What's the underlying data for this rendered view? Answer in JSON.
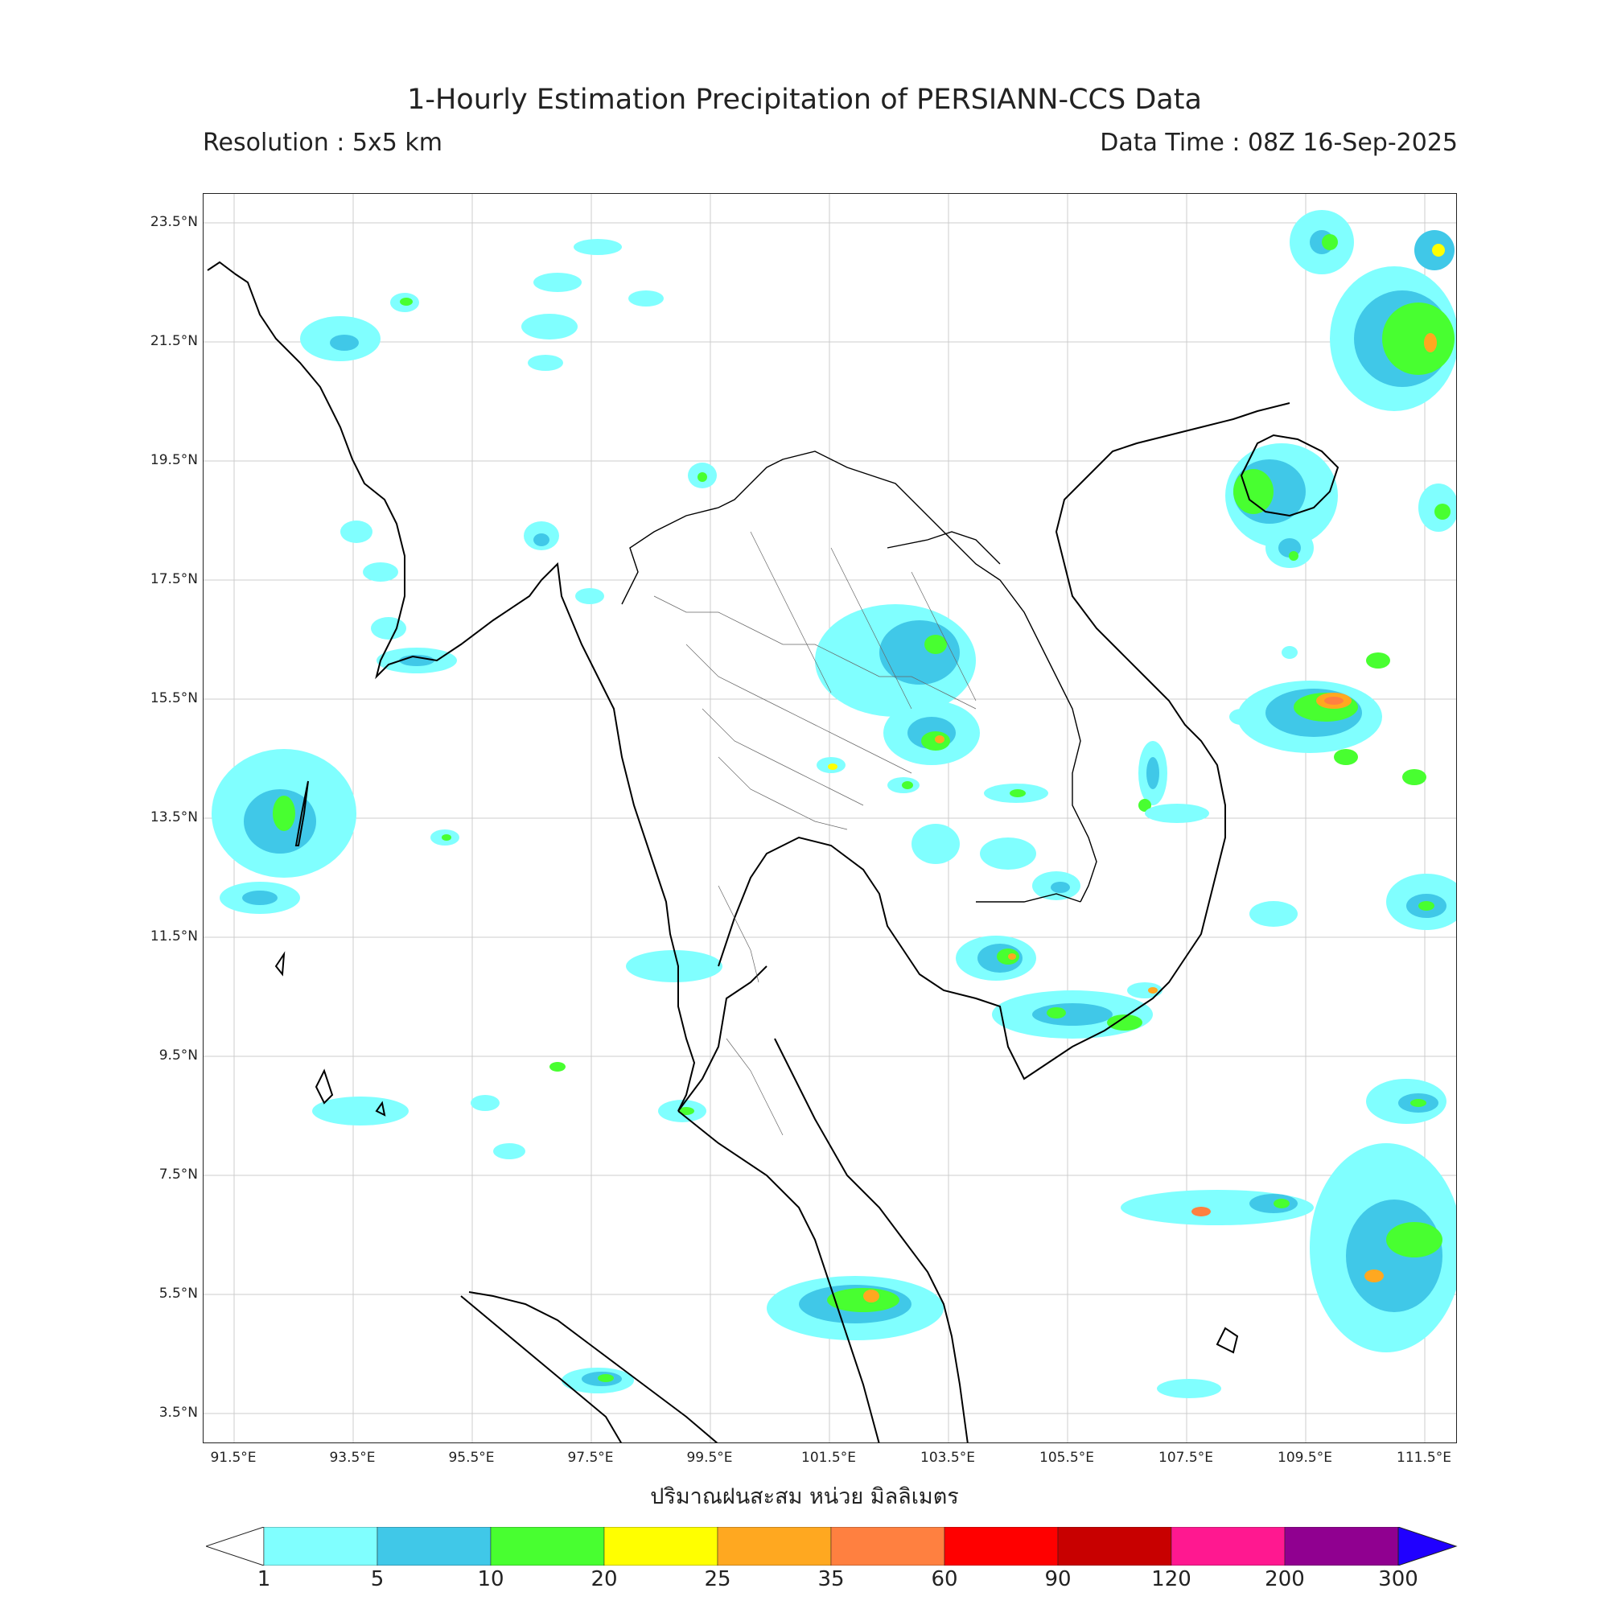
{
  "header": {
    "title": "1-Hourly Estimation Precipitation of PERSIANN-CCS Data",
    "resolution": "Resolution : 5x5 km",
    "data_time": "Data Time : 08Z 16-Sep-2025"
  },
  "map": {
    "region": "Thailand and surrounding Southeast Asia",
    "lon_range": [
      90.9,
      112.0
    ],
    "lat_range": [
      3.0,
      24.0
    ],
    "lat_ticks": [
      "23.5°N",
      "21.5°N",
      "19.5°N",
      "17.5°N",
      "15.5°N",
      "13.5°N",
      "11.5°N",
      "9.5°N",
      "7.5°N",
      "5.5°N",
      "3.5°N"
    ],
    "lon_ticks": [
      "91.5°E",
      "93.5°E",
      "95.5°E",
      "97.5°E",
      "99.5°E",
      "101.5°E",
      "103.5°E",
      "105.5°E",
      "107.5°E",
      "109.5°E",
      "111.5°E"
    ],
    "grid": true
  },
  "legend": {
    "title": "ปริมาณฝนสะสม หน่วย มิลลิเมตร",
    "ticks": [
      "1",
      "5",
      "10",
      "20",
      "25",
      "35",
      "60",
      "90",
      "120",
      "200",
      "300"
    ],
    "colors": [
      "#80ffff",
      "#40c8e8",
      "#48ff30",
      "#ffff00",
      "#ffa820",
      "#ff8040",
      "#ff0000",
      "#c80000",
      "#ff1890",
      "#900090",
      "#2000ff"
    ]
  }
}
